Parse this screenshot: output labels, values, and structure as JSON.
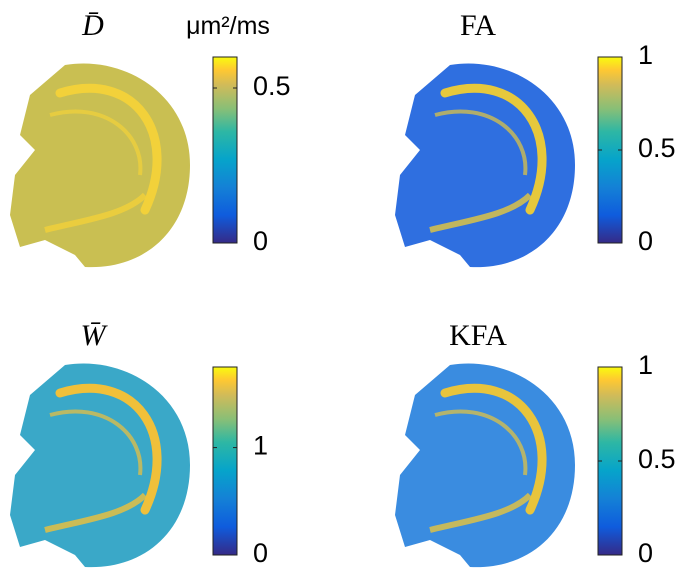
{
  "chart_data": [
    {
      "type": "heatmap",
      "title": "D̄",
      "colorbar_label": "μm²/ms",
      "ylim": [
        0,
        0.6
      ],
      "yticks": [
        0,
        0.5
      ]
    },
    {
      "type": "heatmap",
      "title": "FA",
      "ylim": [
        0,
        1
      ],
      "yticks": [
        0,
        0.5,
        1
      ]
    },
    {
      "type": "heatmap",
      "title": "W̄",
      "ylim": [
        0,
        1.75
      ],
      "yticks": [
        0,
        1
      ]
    },
    {
      "type": "heatmap",
      "title": "KFA",
      "ylim": [
        0,
        1
      ],
      "yticks": [
        0,
        0.5,
        1
      ]
    }
  ]
}
